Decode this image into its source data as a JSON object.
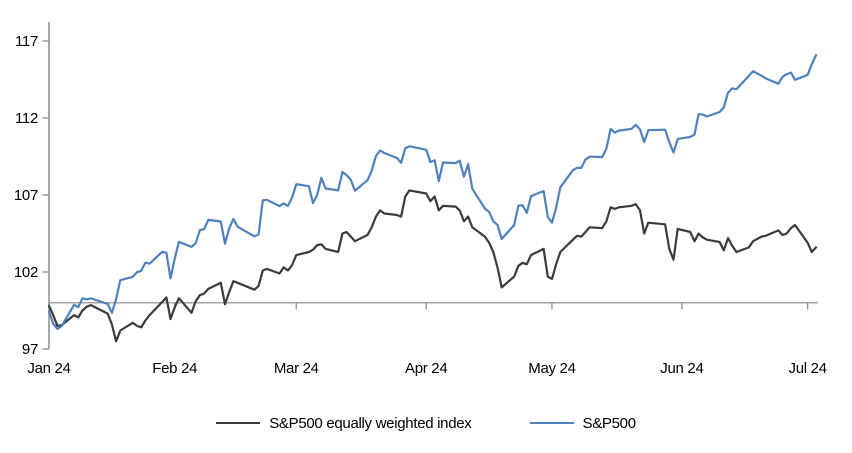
{
  "chart_data": {
    "type": "line",
    "title": "",
    "xlabel": "",
    "ylabel": "",
    "grid": false,
    "legend_position": "bottom-center",
    "y_ticks": [
      97,
      102,
      107,
      112,
      117
    ],
    "ylim": [
      97,
      117
    ],
    "reference_line": 100,
    "x_ticks": [
      {
        "label": "Jan 24",
        "date": "01-02"
      },
      {
        "label": "Feb 24",
        "date": "02-01"
      },
      {
        "label": "Mar 24",
        "date": "03-01"
      },
      {
        "label": "Apr 24",
        "date": "04-01"
      },
      {
        "label": "May 24",
        "date": "05-01"
      },
      {
        "label": "Jun 24",
        "date": "06-01"
      },
      {
        "label": "Jul 24",
        "date": "07-01"
      }
    ],
    "x_dates": [
      "01-02",
      "01-03",
      "01-04",
      "01-05",
      "01-08",
      "01-09",
      "01-10",
      "01-11",
      "01-12",
      "01-16",
      "01-17",
      "01-18",
      "01-19",
      "01-22",
      "01-23",
      "01-24",
      "01-25",
      "01-26",
      "01-29",
      "01-30",
      "01-31",
      "02-01",
      "02-02",
      "02-05",
      "02-06",
      "02-07",
      "02-08",
      "02-09",
      "02-12",
      "02-13",
      "02-14",
      "02-15",
      "02-16",
      "02-20",
      "02-21",
      "02-22",
      "02-23",
      "02-26",
      "02-27",
      "02-28",
      "02-29",
      "03-01",
      "03-04",
      "03-05",
      "03-06",
      "03-07",
      "03-08",
      "03-11",
      "03-12",
      "03-13",
      "03-14",
      "03-15",
      "03-18",
      "03-19",
      "03-20",
      "03-21",
      "03-22",
      "03-25",
      "03-26",
      "03-27",
      "03-28",
      "04-01",
      "04-02",
      "04-03",
      "04-04",
      "04-05",
      "04-08",
      "04-09",
      "04-10",
      "04-11",
      "04-12",
      "04-15",
      "04-16",
      "04-17",
      "04-18",
      "04-19",
      "04-22",
      "04-23",
      "04-24",
      "04-25",
      "04-26",
      "04-29",
      "04-30",
      "05-01",
      "05-02",
      "05-03",
      "05-06",
      "05-07",
      "05-08",
      "05-09",
      "05-10",
      "05-13",
      "05-14",
      "05-15",
      "05-16",
      "05-17",
      "05-20",
      "05-21",
      "05-22",
      "05-23",
      "05-24",
      "05-28",
      "05-29",
      "05-30",
      "05-31",
      "06-03",
      "06-04",
      "06-05",
      "06-06",
      "06-07",
      "06-10",
      "06-11",
      "06-12",
      "06-13",
      "06-14",
      "06-17",
      "06-18",
      "06-20",
      "06-21",
      "06-24",
      "06-25",
      "06-26",
      "06-27",
      "06-28",
      "07-01",
      "07-02",
      "07-03"
    ],
    "series": [
      {
        "name": "S&P500 equally weighted index",
        "color": "#3b3b3b",
        "values": [
          99.8,
          99.2,
          98.5,
          98.55,
          99.2,
          99.05,
          99.5,
          99.75,
          99.85,
          99.3,
          98.6,
          97.5,
          98.2,
          98.7,
          98.5,
          98.4,
          98.85,
          99.2,
          100.05,
          100.35,
          98.95,
          99.7,
          100.3,
          99.35,
          100.1,
          100.5,
          100.6,
          100.9,
          101.3,
          99.9,
          100.7,
          101.4,
          101.3,
          100.85,
          101.1,
          102.1,
          102.2,
          101.9,
          102.3,
          102.1,
          102.45,
          103.1,
          103.3,
          103.45,
          103.75,
          103.8,
          103.5,
          103.3,
          104.5,
          104.6,
          104.3,
          104.0,
          104.4,
          104.9,
          105.6,
          106.0,
          105.8,
          105.7,
          105.6,
          106.9,
          107.3,
          107.1,
          106.6,
          106.9,
          106.0,
          106.3,
          106.25,
          106.0,
          105.3,
          105.6,
          104.9,
          104.3,
          103.9,
          103.3,
          102.3,
          101.0,
          101.7,
          102.4,
          102.6,
          102.5,
          103.1,
          103.5,
          101.7,
          101.55,
          102.5,
          103.3,
          104.1,
          104.35,
          104.3,
          104.6,
          104.9,
          104.85,
          105.3,
          106.2,
          106.1,
          106.2,
          106.3,
          106.4,
          106.0,
          104.5,
          105.2,
          105.1,
          103.5,
          102.8,
          104.8,
          104.6,
          104.0,
          104.5,
          104.25,
          104.1,
          103.95,
          103.4,
          104.2,
          103.7,
          103.3,
          103.6,
          104.0,
          104.3,
          104.35,
          104.7,
          104.4,
          104.5,
          104.85,
          105.05,
          103.9,
          103.3,
          103.6
        ]
      },
      {
        "name": "S&P500",
        "color": "#4f81bd",
        "values": [
          99.43,
          98.64,
          98.3,
          98.48,
          99.87,
          99.72,
          100.29,
          100.22,
          100.29,
          99.92,
          99.36,
          100.23,
          101.47,
          101.69,
          101.99,
          102.07,
          102.61,
          102.54,
          103.31,
          103.25,
          101.59,
          102.86,
          103.96,
          103.63,
          103.87,
          104.72,
          104.78,
          105.38,
          105.28,
          103.84,
          104.84,
          105.45,
          104.94,
          104.31,
          104.44,
          106.65,
          106.69,
          106.28,
          106.46,
          106.29,
          106.84,
          107.7,
          107.57,
          106.47,
          107.02,
          108.12,
          107.42,
          107.3,
          108.5,
          108.29,
          107.98,
          107.28,
          107.96,
          108.57,
          109.53,
          109.89,
          109.73,
          109.4,
          109.09,
          110.03,
          110.16,
          109.94,
          109.14,
          109.26,
          107.91,
          109.11,
          109.07,
          109.23,
          108.19,
          109.0,
          107.41,
          106.12,
          105.9,
          105.29,
          105.06,
          104.14,
          105.05,
          106.31,
          106.33,
          105.84,
          106.92,
          107.26,
          105.57,
          105.21,
          106.17,
          107.5,
          108.61,
          108.76,
          108.76,
          109.31,
          109.49,
          109.47,
          110.0,
          111.29,
          111.05,
          111.18,
          111.29,
          111.56,
          111.26,
          110.44,
          111.21,
          111.24,
          110.42,
          109.76,
          110.64,
          110.77,
          110.93,
          112.25,
          112.23,
          112.1,
          112.39,
          112.69,
          113.65,
          113.92,
          113.87,
          114.75,
          115.04,
          114.75,
          114.57,
          114.22,
          114.67,
          114.85,
          114.95,
          114.48,
          114.79,
          115.5,
          116.08
        ]
      }
    ]
  },
  "styles": {
    "reference_line_color": "#a6a6a6",
    "axis_color": "#8c8c8c",
    "text_color": "#000000",
    "background": "#ffffff"
  }
}
